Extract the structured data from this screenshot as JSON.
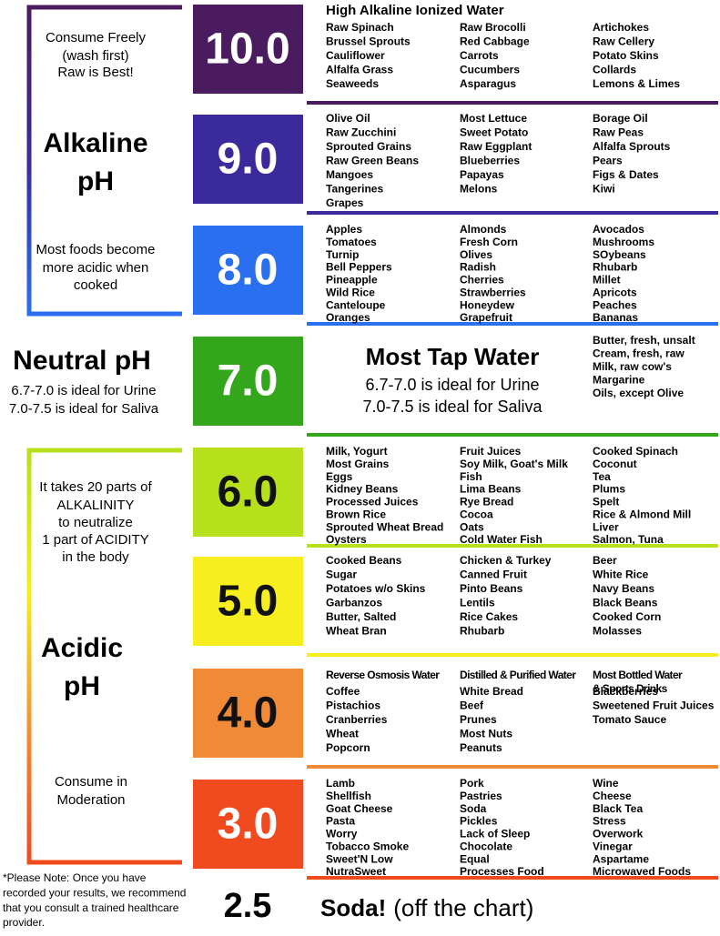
{
  "left": {
    "alkaline_note": [
      "Consume Freely",
      "(wash first)",
      "Raw is Best!"
    ],
    "alkaline_label": [
      "Alkaline",
      "pH"
    ],
    "cook_note": [
      "Most foods become",
      "more acidic when",
      "cooked"
    ],
    "neutral_label": "Neutral pH",
    "neutral_notes": [
      "6.7-7.0 is ideal for Urine",
      "7.0-7.5 is ideal for Saliva"
    ],
    "acidity_note": [
      "It takes 20 parts of",
      "ALKALINITY",
      "to neutralize",
      "1 part of ACIDITY",
      "in the body"
    ],
    "acidic_label": [
      "Acidic",
      "pH"
    ],
    "moderation_note": [
      "Consume in",
      "Moderation"
    ],
    "footnote": [
      "*Please Note: Once you have",
      "recorded your results, we recommend",
      "that you consult a trained healthcare",
      "provider."
    ]
  },
  "levels": [
    {
      "ph": "10.0",
      "color": "#4b1b5f",
      "heading": "High Alkaline Ionized Water",
      "columns": [
        {
          "items": [
            "Raw Spinach",
            "Brussel Sprouts",
            "Cauliflower",
            "Alfalfa Grass",
            "Seaweeds"
          ]
        },
        {
          "items": [
            "Raw Brocolli",
            "Red Cabbage",
            "Carrots",
            "Cucumbers",
            "Asparagus"
          ]
        },
        {
          "items": [
            "Artichokes",
            "Raw Cellery",
            "Potato Skins",
            "Collards",
            "Lemons & Limes"
          ]
        }
      ]
    },
    {
      "ph": "9.0",
      "color": "#3b2a9c",
      "columns": [
        {
          "items": [
            "Olive Oil",
            "Raw Zucchini",
            "Sprouted Grains",
            "Raw Green Beans",
            "Mangoes",
            "Tangerines",
            "Grapes"
          ]
        },
        {
          "items": [
            "Most Lettuce",
            "Sweet Potato",
            "Raw Eggplant",
            "Blueberries",
            "Papayas",
            "Melons"
          ]
        },
        {
          "items": [
            "Borage Oil",
            "Raw Peas",
            "Alfalfa Sprouts",
            "Pears",
            "Figs & Dates",
            "Kiwi"
          ]
        }
      ]
    },
    {
      "ph": "8.0",
      "color": "#2a6ff0",
      "columns": [
        {
          "items": [
            "Apples",
            "Tomatoes",
            "Turnip",
            "Bell Peppers",
            "Pineapple",
            "Wild Rice",
            "Canteloupe",
            "Oranges"
          ]
        },
        {
          "items": [
            "Almonds",
            "Fresh Corn",
            "Olives",
            "Radish",
            "Cherries",
            "Strawberries",
            "Honeydew",
            "Grapefruit"
          ]
        },
        {
          "items": [
            "Avocados",
            "Mushrooms",
            "SOybeans",
            "Rhubarb",
            "Millet",
            "Apricots",
            "Peaches",
            "Bananas"
          ]
        }
      ]
    },
    {
      "ph": "7.0",
      "color": "#33a61b",
      "title": "Most Tap Water",
      "notes": [
        "6.7-7.0 is ideal for Urine",
        "7.0-7.5 is ideal for Saliva"
      ],
      "columns": [
        {
          "items": [
            "Butter, fresh, unsalt",
            "Cream, fresh, raw",
            "Milk, raw cow's",
            "Margarine",
            "Oils, except Olive"
          ]
        }
      ]
    },
    {
      "ph": "6.0",
      "color": "#b7e11d",
      "columns": [
        {
          "items": [
            "Milk, Yogurt",
            "Most Grains",
            "Eggs",
            "Kidney Beans",
            "Processed Juices",
            "Brown Rice",
            "Sprouted Wheat Bread",
            "Oysters"
          ]
        },
        {
          "items": [
            "Fruit Juices",
            "Soy Milk, Goat's Milk",
            "Fish",
            "Lima Beans",
            "Rye Bread",
            "Cocoa",
            "Oats",
            "Cold Water Fish"
          ]
        },
        {
          "items": [
            "Cooked Spinach",
            "Coconut",
            "Tea",
            "Plums",
            "Spelt",
            "Rice & Almond Mill",
            "Liver",
            "Salmon, Tuna"
          ]
        }
      ]
    },
    {
      "ph": "5.0",
      "color": "#f6ee1e",
      "columns": [
        {
          "items": [
            "Cooked Beans",
            "Sugar",
            "Potatoes w/o Skins",
            "Garbanzos",
            "Butter, Salted",
            "Wheat Bran"
          ]
        },
        {
          "items": [
            "Chicken & Turkey",
            "Canned Fruit",
            "Pinto Beans",
            "Lentils",
            "Rice Cakes",
            "Rhubarb"
          ]
        },
        {
          "items": [
            "Beer",
            "White Rice",
            "Navy Beans",
            "Black Beans",
            "Cooked Corn",
            "Molasses"
          ]
        }
      ]
    },
    {
      "ph": "4.0",
      "color": "#f08a36",
      "columns": [
        {
          "heading": [
            "Reverse Osmosis Water"
          ],
          "items": [
            "Coffee",
            "Pistachios",
            "Cranberries",
            "Wheat",
            "Popcorn"
          ]
        },
        {
          "heading": [
            "Distilled & Purified Water"
          ],
          "items": [
            "White Bread",
            "Beef",
            "Prunes",
            "Most Nuts",
            "Peanuts"
          ]
        },
        {
          "heading": [
            "Most Bottled Water",
            "& Sports Drinks"
          ],
          "items": [
            "Blackberries",
            "Sweetened Fruit Juices",
            "Tomato Sauce"
          ]
        }
      ]
    },
    {
      "ph": "3.0",
      "color": "#f04a1f",
      "columns": [
        {
          "items": [
            "Lamb",
            "Shellfish",
            "Goat Cheese",
            "Pasta",
            "Worry",
            "Tobacco Smoke",
            "Sweet'N Low",
            "NutraSweet"
          ]
        },
        {
          "items": [
            "Pork",
            "Pastries",
            "Soda",
            "Pickles",
            "Lack of Sleep",
            "Chocolate",
            "Equal",
            "Processes Food"
          ]
        },
        {
          "items": [
            "Wine",
            "Cheese",
            "Black Tea",
            "Stress",
            "Overwork",
            "Vinegar",
            "Aspartame",
            "Microwaved Foods"
          ]
        }
      ]
    }
  ],
  "soda": {
    "ph": "2.5",
    "title": "Soda!",
    "note": "(off the chart)"
  }
}
